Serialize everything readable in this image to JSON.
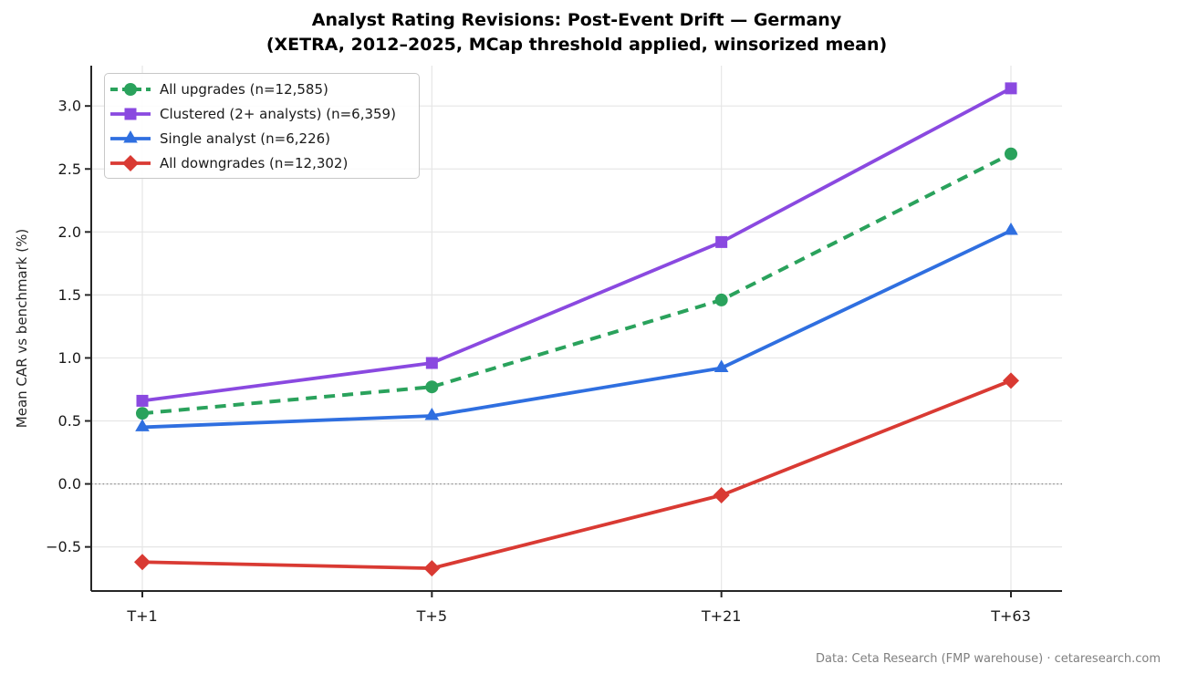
{
  "title": {
    "line1": "Analyst Rating Revisions: Post-Event Drift — Germany",
    "line2": "(XETRA, 2012–2025, MCap threshold applied, winsorized mean)"
  },
  "footer": {
    "text": "Data: Ceta Research (FMP warehouse) · cetaresearch.com",
    "color": "#808080"
  },
  "chart_data": {
    "type": "line",
    "title": "Analyst Rating Revisions: Post-Event Drift — Germany (XETRA, 2012–2025, MCap threshold applied, winsorized mean)",
    "categories": [
      "T+1",
      "T+5",
      "T+21",
      "T+63"
    ],
    "series": [
      {
        "name": "All upgrades (n=12,585)",
        "color": "#2aa25c",
        "marker": "circle",
        "line_style": "dashed",
        "values": [
          0.56,
          0.77,
          1.46,
          2.62
        ]
      },
      {
        "name": "Clustered (2+ analysts) (n=6,359)",
        "color": "#8a49e0",
        "marker": "square",
        "line_style": "solid",
        "values": [
          0.66,
          0.96,
          1.92,
          3.14
        ]
      },
      {
        "name": "Single analyst (n=6,226)",
        "color": "#2f6fe0",
        "marker": "triangle",
        "line_style": "solid",
        "values": [
          0.45,
          0.54,
          0.92,
          2.01
        ]
      },
      {
        "name": "All downgrades (n=12,302)",
        "color": "#d93a33",
        "marker": "diamond",
        "line_style": "solid",
        "values": [
          -0.62,
          -0.67,
          -0.09,
          0.82
        ]
      }
    ],
    "xlabel": "",
    "ylabel": "Mean CAR vs benchmark (%)",
    "ylim": [
      -0.85,
      3.32
    ],
    "yticks": [
      -0.5,
      0.0,
      0.5,
      1.0,
      1.5,
      2.0,
      2.5,
      3.0
    ],
    "grid": true,
    "zero_line": "dotted",
    "legend_position": "upper-left",
    "colors": {
      "grid": "#e6e6e6",
      "spine": "#262626",
      "zero_line": "#8c8c8c",
      "tick_label": "#1a1a1a"
    }
  }
}
